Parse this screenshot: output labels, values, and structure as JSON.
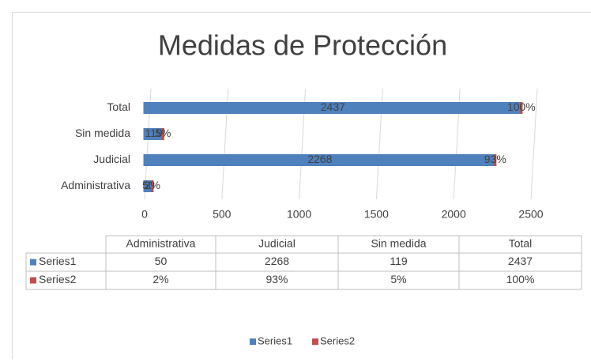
{
  "chart_data": {
    "type": "bar",
    "stacked": true,
    "orientation": "horizontal",
    "title": "Medidas de Protección",
    "categories": [
      "Administrativa",
      "Judicial",
      "Sin medida",
      "Total"
    ],
    "series": [
      {
        "name": "Series1",
        "color": "#4f81bd",
        "values": [
          50,
          2268,
          119,
          2437
        ]
      },
      {
        "name": "Series2",
        "color": "#c0504d",
        "values": [
          0.02,
          0.93,
          0.05,
          1
        ],
        "value_labels": [
          "2%",
          "93%",
          "5%",
          "100%"
        ]
      }
    ],
    "xlim": [
      0,
      2500
    ],
    "xticks": [
      0,
      500,
      1000,
      1500,
      2000,
      2500
    ],
    "grid": true,
    "legend": "bottom",
    "data_table": true
  }
}
